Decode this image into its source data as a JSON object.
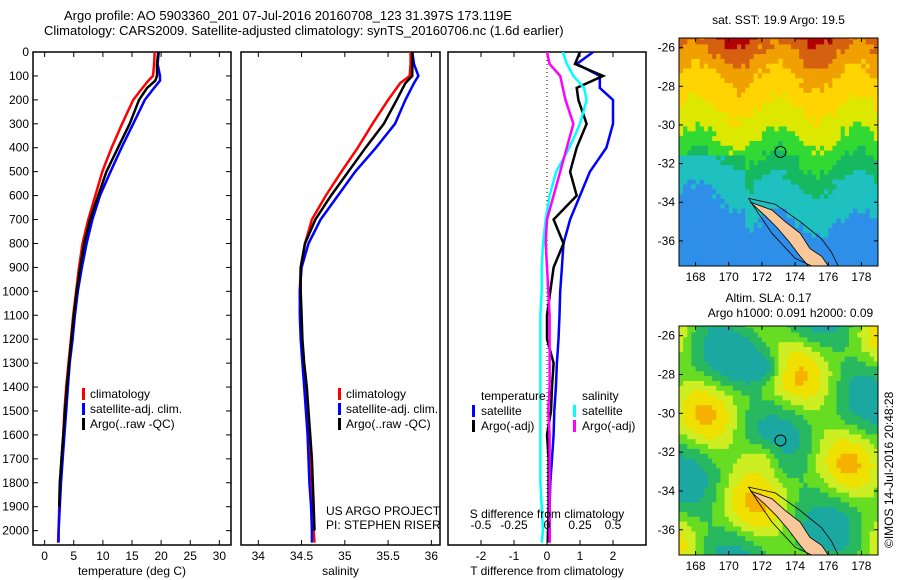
{
  "header": {
    "line1": "Argo profile: AO 5903360_201 07-Jul-2016 20160708_123 31.397S 173.119E",
    "line2": "Climatology: CARS2009. Satellite-adjusted climatology: synTS_20160706.nc (1.6d earlier)"
  },
  "colors": {
    "climatology": "#ff0000",
    "satellite": "#0000ff",
    "argo": "#000000",
    "sal_satellite": "#00ffff",
    "sal_argo": "#ff00ff"
  },
  "credit": "©IMOS 14-Jul-2016 20:48:28",
  "chart_data": [
    {
      "id": "temperature",
      "type": "line",
      "xlabel": "temperature (deg C)",
      "ylabel": "",
      "xlim": [
        -2,
        32
      ],
      "ylim": [
        2060,
        0
      ],
      "xticks": [
        0,
        5,
        10,
        15,
        20,
        25,
        30
      ],
      "yticks": [
        0,
        100,
        200,
        300,
        400,
        500,
        600,
        700,
        800,
        900,
        1000,
        1100,
        1200,
        1300,
        1400,
        1500,
        1600,
        1700,
        1800,
        1900,
        2000
      ],
      "legend": [
        "climatology",
        "satellite-adj. clim.",
        "Argo(..raw -QC)"
      ],
      "legend_position": "lower-middle",
      "depth": [
        0,
        50,
        100,
        120,
        150,
        200,
        300,
        400,
        500,
        600,
        700,
        800,
        900,
        1000,
        1100,
        1200,
        1300,
        1400,
        1500,
        1600,
        1700,
        1800,
        1900,
        2000,
        2050
      ],
      "series": [
        {
          "name": "climatology",
          "color_key": "climatology",
          "values": [
            18.9,
            18.8,
            18.6,
            17.8,
            16.8,
            15.2,
            13.3,
            11.5,
            9.9,
            8.7,
            7.5,
            6.5,
            5.9,
            5.4,
            4.9,
            4.5,
            4.1,
            3.7,
            3.4,
            3.2,
            2.9,
            2.7,
            2.5,
            2.4,
            2.3
          ]
        },
        {
          "name": "satellite-adj. clim.",
          "color_key": "satellite",
          "values": [
            19.6,
            19.4,
            19.8,
            19.8,
            18.8,
            17.2,
            15.2,
            13.2,
            11.3,
            9.5,
            8.2,
            7.2,
            6.4,
            5.7,
            5.2,
            4.8,
            4.3,
            4.0,
            3.7,
            3.4,
            3.1,
            2.8,
            2.6,
            2.4,
            2.4
          ]
        },
        {
          "name": "Argo(..raw -QC)",
          "color_key": "argo",
          "values": [
            19.5,
            19.3,
            19.3,
            19.0,
            17.6,
            16.2,
            14.6,
            12.6,
            10.6,
            9.2,
            7.8,
            6.8,
            6.1,
            5.5,
            5.0,
            4.6,
            4.2,
            3.8,
            3.5,
            3.2,
            2.9,
            2.6,
            2.5
          ]
        }
      ]
    },
    {
      "id": "salinity",
      "type": "line",
      "xlabel": "salinity",
      "xlim": [
        33.8,
        36.1
      ],
      "ylim": [
        2060,
        0
      ],
      "xticks": [
        34,
        34.5,
        35,
        35.5,
        36
      ],
      "xticklabels": [
        "34",
        "34.5",
        "35",
        "35.5",
        "36"
      ],
      "legend": [
        "climatology",
        "satellite-adj. clim.",
        "Argo(..raw -QC)"
      ],
      "legend_position": "lower-right",
      "annotation": [
        "US ARGO PROJECT",
        "PI: STEPHEN RISER"
      ],
      "depth": [
        0,
        50,
        100,
        130,
        200,
        300,
        400,
        500,
        600,
        700,
        800,
        900,
        1000,
        1100,
        1200,
        1300,
        1400,
        1500,
        1600,
        1700,
        1800,
        1900,
        2000,
        2050
      ],
      "series": [
        {
          "name": "climatology",
          "color_key": "climatology",
          "values": [
            35.76,
            35.76,
            35.75,
            35.64,
            35.5,
            35.32,
            35.15,
            34.96,
            34.78,
            34.62,
            34.54,
            34.49,
            34.48,
            34.49,
            34.5,
            34.52,
            34.55,
            34.57,
            34.59,
            34.6,
            34.62,
            34.63,
            34.64,
            34.65
          ]
        },
        {
          "name": "satellite-adj. clim.",
          "color_key": "satellite",
          "values": [
            35.78,
            35.8,
            35.85,
            35.8,
            35.7,
            35.58,
            35.36,
            35.12,
            34.92,
            34.72,
            34.58,
            34.5,
            34.48,
            34.48,
            34.49,
            34.51,
            34.53,
            34.55,
            34.57,
            34.58,
            34.59,
            34.61,
            34.62,
            34.62
          ]
        },
        {
          "name": "Argo(..raw -QC)",
          "color_key": "argo",
          "values": [
            35.78,
            35.78,
            35.78,
            35.7,
            35.6,
            35.45,
            35.24,
            35.04,
            34.84,
            34.66,
            34.54,
            34.49,
            34.49,
            34.5,
            34.51,
            34.53,
            34.56,
            34.58,
            34.6,
            34.62,
            34.63,
            34.64,
            34.65
          ]
        }
      ]
    },
    {
      "id": "difference",
      "type": "line",
      "xlabel": "T difference from climatology",
      "xlabel2": "S difference from climatology",
      "xlim": [
        -3,
        3
      ],
      "ylim": [
        2060,
        0
      ],
      "xticks": [
        -2,
        -1,
        0,
        1,
        2
      ],
      "xticks_s": [
        -0.5,
        -0.25,
        0,
        0.25,
        0.5
      ],
      "xticklabels_s": [
        "-0.5",
        "-0.25",
        "0",
        "0.25",
        "0.5"
      ],
      "legend": {
        "temperature": [
          "satellite",
          "Argo(-adj)"
        ],
        "salinity": [
          "satellite",
          "Argo(-adj)"
        ]
      },
      "legend_headers": [
        "temperature",
        "salinity"
      ],
      "depth": [
        0,
        50,
        100,
        150,
        200,
        300,
        400,
        500,
        600,
        700,
        800,
        900,
        1000,
        1100,
        1200,
        1300,
        1400,
        1500,
        1600,
        1700,
        1800,
        1900,
        2000,
        2050
      ],
      "series": [
        {
          "name": "T satellite",
          "color_key": "satellite",
          "units": "T",
          "values": [
            1.4,
            0.9,
            1.6,
            1.6,
            2.0,
            2.0,
            1.8,
            1.3,
            1.0,
            0.7,
            0.5,
            0.45,
            0.4,
            0.38,
            0.35,
            0.3,
            0.27,
            0.22,
            0.2,
            0.15,
            0.1,
            0.08,
            0.08,
            0.08
          ]
        },
        {
          "name": "T Argo(-adj)",
          "color_key": "argo",
          "units": "T",
          "values": [
            1.0,
            0.85,
            1.7,
            0.9,
            0.95,
            1.2,
            0.9,
            0.7,
            0.9,
            0.2,
            0.5,
            0.2,
            0.1,
            0.0,
            0.0,
            0.2,
            0.15,
            0.12,
            0.0,
            0.05,
            0.05,
            0.05,
            0.03,
            0.02
          ]
        },
        {
          "name": "S satellite",
          "color_key": "sal_satellite",
          "units": "S",
          "values": [
            0.12,
            0.15,
            0.2,
            0.28,
            0.3,
            0.25,
            0.17,
            0.07,
            0.02,
            -0.01,
            -0.03,
            -0.04,
            -0.04,
            -0.05,
            -0.05,
            -0.05,
            -0.05,
            -0.05,
            -0.05,
            -0.05,
            -0.05,
            -0.04,
            -0.03,
            -0.04
          ]
        },
        {
          "name": "S Argo(-adj)",
          "color_key": "sal_argo",
          "units": "S",
          "values": [
            0.0,
            0.02,
            0.1,
            0.12,
            0.14,
            0.2,
            0.15,
            0.1,
            0.05,
            0.0,
            -0.01,
            0.0,
            0.01,
            0.02,
            0.02,
            0.02,
            0.02,
            0.01,
            0.02,
            0.02,
            0.02,
            0.02,
            0.02,
            0.02
          ]
        }
      ]
    },
    {
      "id": "sst-map",
      "type": "heatmap",
      "title": "sat. SST: 19.9 Argo: 19.5",
      "xlim": [
        167,
        179
      ],
      "ylim": [
        -37.3,
        -25.5
      ],
      "xticks": [
        168,
        170,
        172,
        174,
        176,
        178
      ],
      "yticks": [
        -26,
        -28,
        -30,
        -32,
        -34,
        -36
      ],
      "marker": {
        "lon": 173.119,
        "lat": -31.397
      }
    },
    {
      "id": "sla-map",
      "type": "heatmap",
      "title": "Altim. SLA: 0.17",
      "subtitle": "Argo h1000: 0.091 h2000: 0.09",
      "xlim": [
        167,
        179
      ],
      "ylim": [
        -37.3,
        -25.5
      ],
      "xticks": [
        168,
        170,
        172,
        174,
        176,
        178
      ],
      "yticks": [
        -26,
        -28,
        -30,
        -32,
        -34,
        -36
      ],
      "marker": {
        "lon": 173.119,
        "lat": -31.397
      }
    }
  ]
}
